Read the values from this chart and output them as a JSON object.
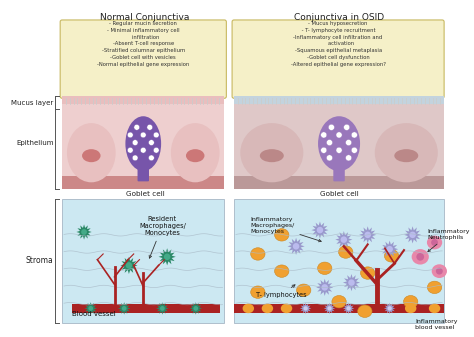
{
  "title_left": "Normal Conjunctiva",
  "title_right": "Conjunctiva in OSID",
  "box_left_text": "- Regular mucin secretion\n- Minimal inflammatory cell\n   infiltration\n-Absent T-cell response\n-Stratified columnar epithelium\n-Goblet cell with vesicles\n-Normal epithelial gene expression",
  "box_right_text": "- Mucus hyposecretion\n - T- lymphocyte recruitment\n-Inflammatory cell infiltration and\n   activation\n-Squamous epithelial metaplasia\n-Goblet cell dysfunction\n-Altered epithelial gene expression?",
  "label_mucus": "Mucus layer",
  "label_epithelium": "Epithelium",
  "label_stroma": "Stroma",
  "label_goblet_left": "Goblet cell",
  "label_goblet_right": "Goblet cell",
  "label_resident": "Resident\nMacrophages/\nMonocytes",
  "label_inflammatory_mac": "Inflammatory\nMacrophages/\nMonocytes",
  "label_blood_vessel": "Blood vessel",
  "label_t_lymphocytes": "T- lymphocytes",
  "label_infl_neutrophils": "Inflammatory\nNeutrophils",
  "label_infl_blood_vessel": "Inflammatory\nblood vessel",
  "bg_color": "#ffffff",
  "box_fill": "#f5f0c8",
  "box_edge": "#c8b860",
  "stroma_blue": "#cce8f2",
  "cell_pink": "#e8c0c0",
  "cell_pink_right": "#d8b8b8",
  "goblet_purple": "#7755aa",
  "goblet_right_purple": "#9977bb",
  "mucus_pink": "#e8b8b8",
  "mucus_blue": "#b8d8e8",
  "ep_bg_left": "#eecfcf",
  "ep_bg_right": "#dfc8c8",
  "ep_base_left": "#cc8888",
  "ep_base_right": "#bb9999",
  "blood_vessel_red": "#aa2222",
  "macrophage_teal": "#2a8866",
  "orange_cell": "#f0a030",
  "purple_cell": "#9999cc",
  "pink_neutrophil": "#e888aa",
  "neutrophil_core": "#cc6699"
}
